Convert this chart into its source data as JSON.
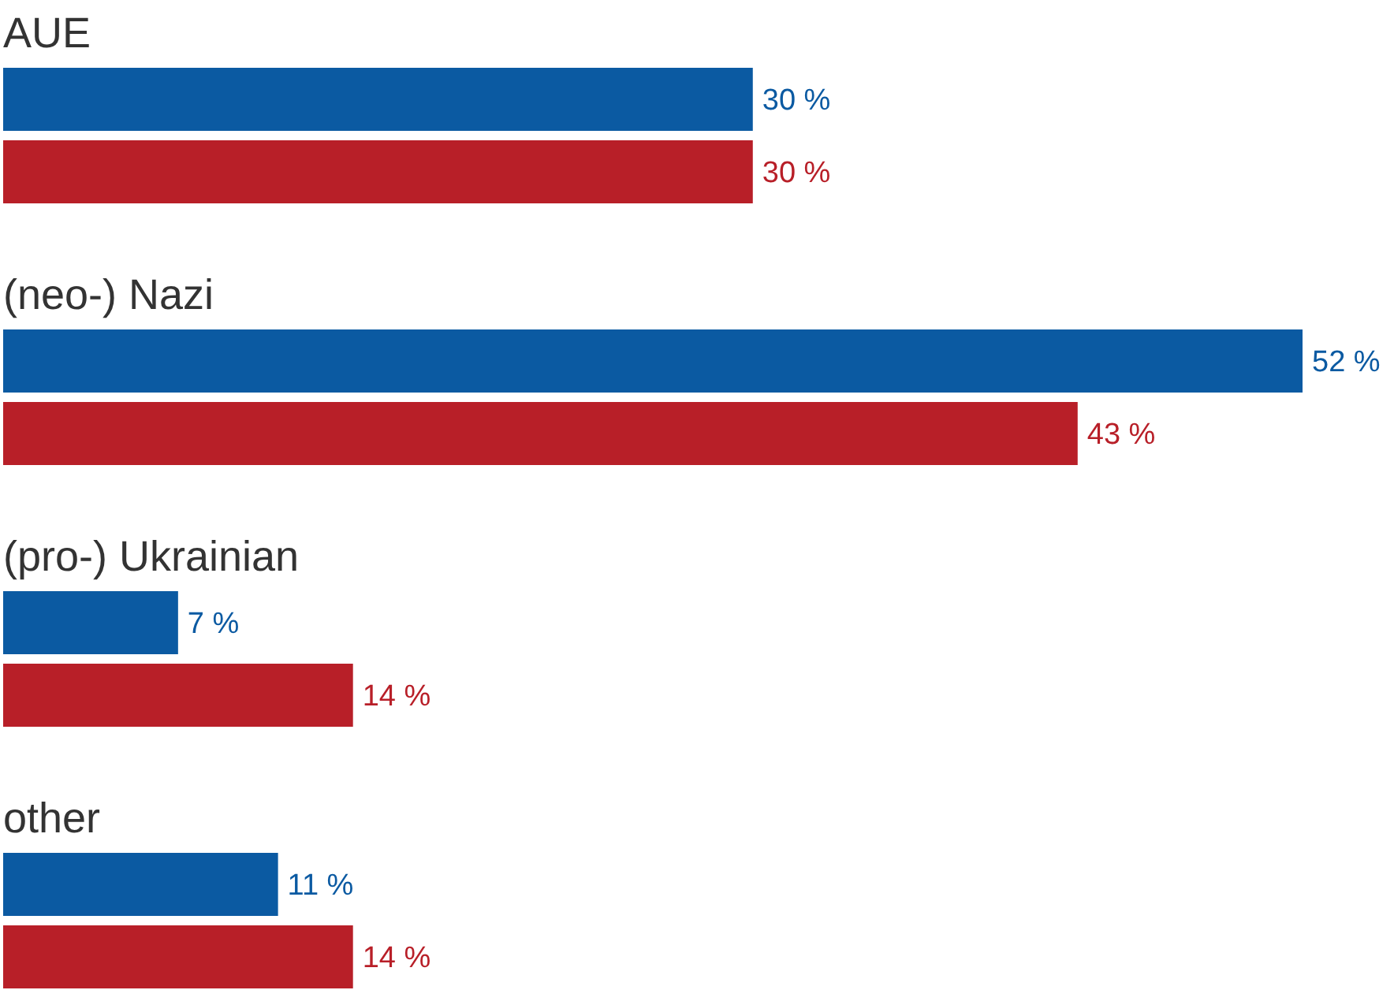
{
  "chart_data": {
    "type": "bar",
    "orientation": "horizontal",
    "categories": [
      "AUE",
      "(neo-) Nazi",
      "(pro-) Ukrainian",
      "other"
    ],
    "series": [
      {
        "color": "#0b5aa2",
        "values": [
          30,
          52,
          7,
          11
        ],
        "value_labels": [
          "30 %",
          "52 %",
          "7 %",
          "11 %"
        ]
      },
      {
        "color": "#b81f28",
        "values": [
          30,
          43,
          14,
          14
        ],
        "value_labels": [
          "30 %",
          "43 %",
          "14 %",
          "14 %"
        ]
      }
    ]
  }
}
